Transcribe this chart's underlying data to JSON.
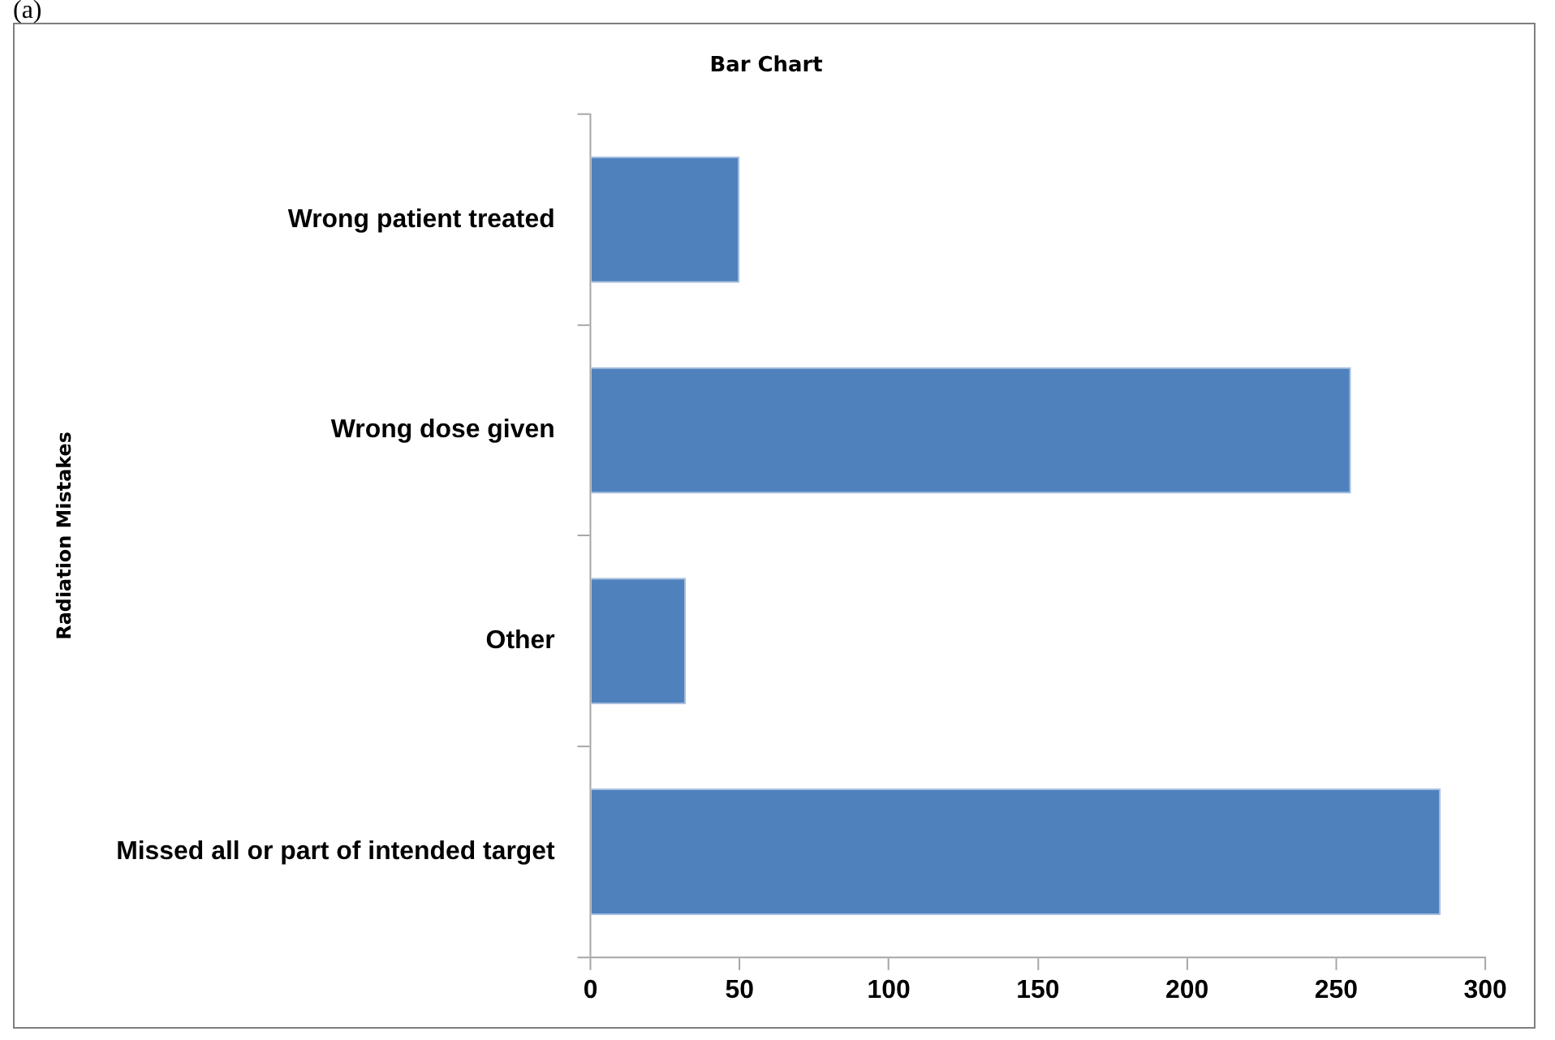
{
  "chart_data": {
    "type": "bar",
    "orientation": "horizontal",
    "title": "Bar Chart",
    "ylabel": "Radiation Mistakes",
    "categories": [
      "Wrong patient treated",
      "Wrong dose given",
      "Other",
      "Missed all or part of intended target"
    ],
    "values": [
      50,
      255,
      32,
      285
    ],
    "color": "#4f81bd",
    "xlim": [
      0,
      300
    ],
    "xticks": [
      0,
      50,
      100,
      150,
      200,
      250,
      300
    ],
    "grid": false,
    "legend": false,
    "annotations": [
      "(a)"
    ]
  }
}
